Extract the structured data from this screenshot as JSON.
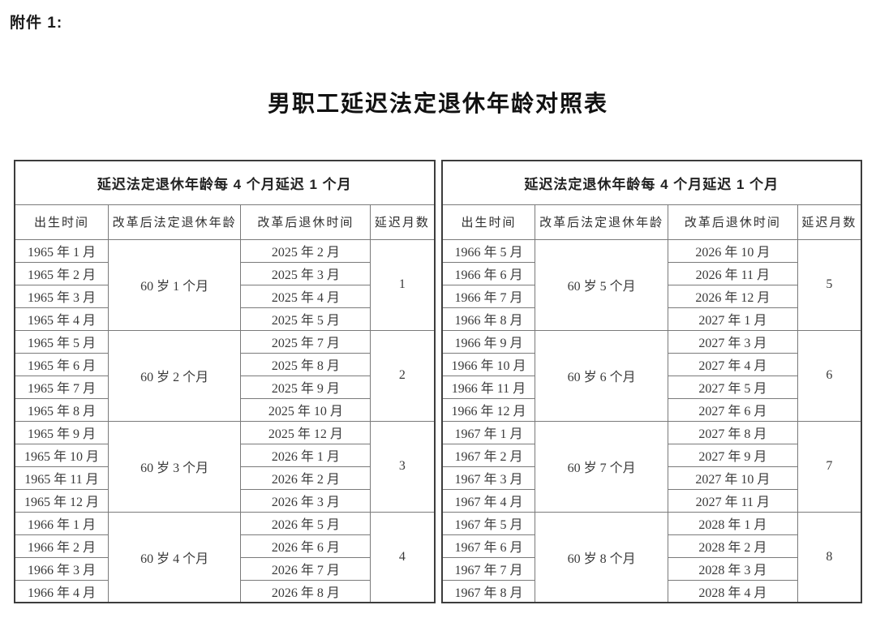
{
  "page": {
    "attachment_label": "附件 1:",
    "title": "男职工延迟法定退休年龄对照表"
  },
  "table": {
    "group_header": "延迟法定退休年龄每 4 个月延迟 1 个月",
    "columns": [
      "出生时间",
      "改革后法定退休年龄",
      "改革后退休时间",
      "延迟月数"
    ],
    "panels": [
      {
        "groups": [
          {
            "birth_months": [
              "1965 年 1 月",
              "1965 年 2 月",
              "1965 年 3 月",
              "1965 年 4 月"
            ],
            "retirement_age": "60 岁 1 个月",
            "retire_months": [
              "2025 年 2 月",
              "2025 年 3 月",
              "2025 年 4 月",
              "2025 年 5 月"
            ],
            "delay_months": "1"
          },
          {
            "birth_months": [
              "1965 年 5 月",
              "1965 年 6 月",
              "1965 年 7 月",
              "1965 年 8 月"
            ],
            "retirement_age": "60 岁 2 个月",
            "retire_months": [
              "2025 年 7 月",
              "2025 年 8 月",
              "2025 年 9 月",
              "2025 年 10 月"
            ],
            "delay_months": "2"
          },
          {
            "birth_months": [
              "1965 年 9 月",
              "1965 年 10 月",
              "1965 年 11 月",
              "1965 年 12 月"
            ],
            "retirement_age": "60 岁 3 个月",
            "retire_months": [
              "2025 年 12 月",
              "2026 年 1 月",
              "2026 年 2 月",
              "2026 年 3 月"
            ],
            "delay_months": "3"
          },
          {
            "birth_months": [
              "1966 年 1 月",
              "1966 年 2 月",
              "1966 年 3 月",
              "1966 年 4 月"
            ],
            "retirement_age": "60 岁 4 个月",
            "retire_months": [
              "2026 年 5 月",
              "2026 年 6 月",
              "2026 年 7 月",
              "2026 年 8 月"
            ],
            "delay_months": "4"
          }
        ]
      },
      {
        "groups": [
          {
            "birth_months": [
              "1966 年 5 月",
              "1966 年 6 月",
              "1966 年 7 月",
              "1966 年 8 月"
            ],
            "retirement_age": "60 岁 5 个月",
            "retire_months": [
              "2026 年 10 月",
              "2026 年 11 月",
              "2026 年 12 月",
              "2027 年 1 月"
            ],
            "delay_months": "5"
          },
          {
            "birth_months": [
              "1966 年 9 月",
              "1966 年 10 月",
              "1966 年 11 月",
              "1966 年 12 月"
            ],
            "retirement_age": "60 岁 6 个月",
            "retire_months": [
              "2027 年 3 月",
              "2027 年 4 月",
              "2027 年 5 月",
              "2027 年 6 月"
            ],
            "delay_months": "6"
          },
          {
            "birth_months": [
              "1967 年 1 月",
              "1967 年 2 月",
              "1967 年 3 月",
              "1967 年 4 月"
            ],
            "retirement_age": "60 岁 7 个月",
            "retire_months": [
              "2027 年 8 月",
              "2027 年 9 月",
              "2027 年 10 月",
              "2027 年 11 月"
            ],
            "delay_months": "7"
          },
          {
            "birth_months": [
              "1967 年 5 月",
              "1967 年 6 月",
              "1967 年 7 月",
              "1967 年 8 月"
            ],
            "retirement_age": "60 岁 8 个月",
            "retire_months": [
              "2028 年 1 月",
              "2028 年 2 月",
              "2028 年 3 月",
              "2028 年 4 月"
            ],
            "delay_months": "8"
          }
        ]
      }
    ]
  }
}
